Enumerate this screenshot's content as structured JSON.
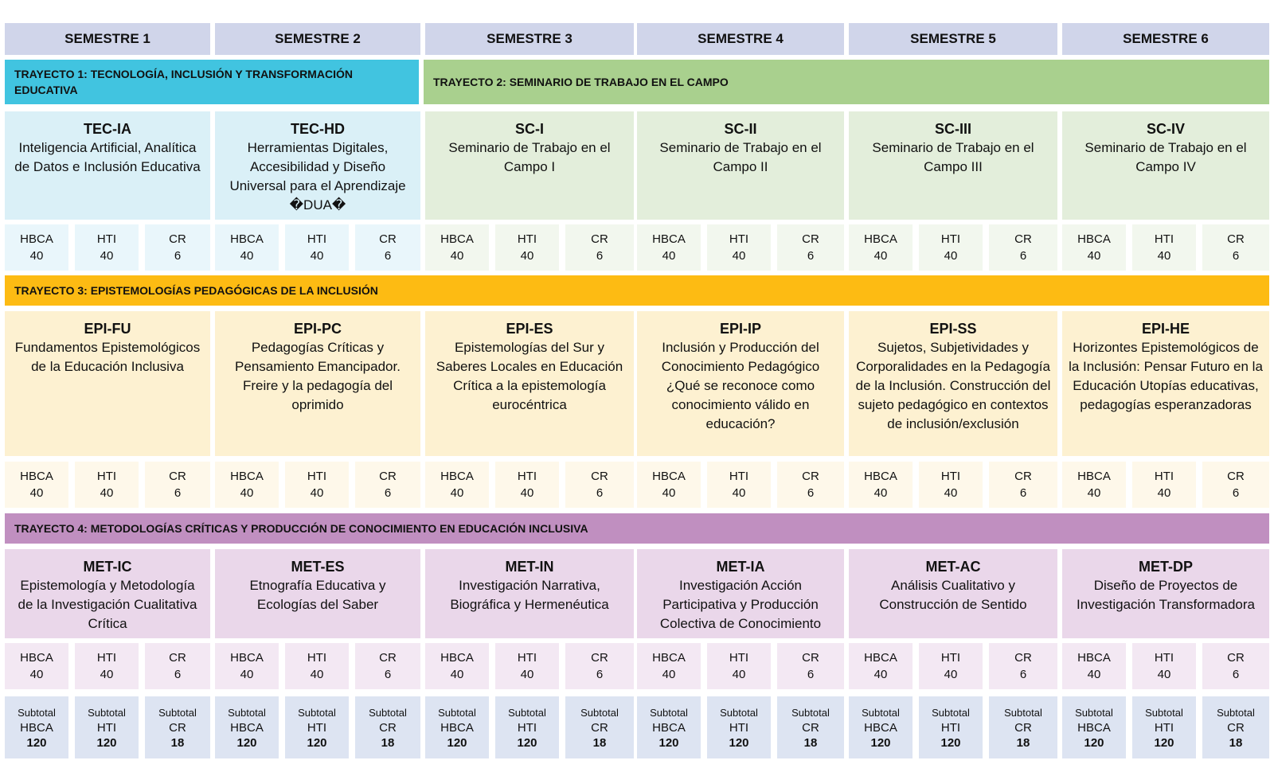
{
  "semesters": [
    "SEMESTRE 1",
    "SEMESTRE 2",
    "SEMESTRE 3",
    "SEMESTRE 4",
    "SEMESTRE 5",
    "SEMESTRE 6"
  ],
  "tracks": [
    {
      "label": "TRAYECTO 1: TECNOLOGÍA, INCLUSIÓN Y TRANSFORMACIÓN EDUCATIVA",
      "color": "#41c4e0"
    },
    {
      "label": "TRAYECTO 2: SEMINARIO DE TRABAJO EN EL CAMPO",
      "color": "#a9d08e"
    },
    {
      "label": "TRAYECTO 3: EPISTEMOLOGÍAS PEDAGÓGICAS DE LA INCLUSIÓN",
      "color": "#fdbb13"
    },
    {
      "label": "TRAYECTO 4:  METODOLOGÍAS CRÍTICAS Y PRODUCCIÓN DE CONOCIMIENTO EN EDUCACIÓN INCLUSIVA",
      "color": "#c08fc0"
    }
  ],
  "colors": {
    "blue_course": "#daf0f7",
    "blue_credit": "#e9f6fb",
    "green_course": "#e3eedb",
    "green_credit": "#f2f7ee",
    "yellow_course": "#fdf1d1",
    "yellow_credit": "#fef8ea",
    "purple_course": "#ead7ea",
    "purple_credit": "#f3e8f3",
    "subtotal": "#dde4f2",
    "semester_header": "#d0d5ea"
  },
  "rows": {
    "row1": [
      {
        "code": "TEC-IA",
        "title": "Inteligencia Artificial, Analítica de Datos e Inclusión Educativa",
        "hbca": "40",
        "hti": "40",
        "cr": "6"
      },
      {
        "code": "TEC-HD",
        "title": "Herramientas Digitales, Accesibilidad y Diseño Universal para el Aprendizaje �DUA�",
        "hbca": "40",
        "hti": "40",
        "cr": "6"
      },
      {
        "code": "SC-I",
        "title": "Seminario de Trabajo en el Campo I",
        "hbca": "40",
        "hti": "40",
        "cr": "6"
      },
      {
        "code": "SC-II",
        "title": "Seminario de Trabajo en el Campo II",
        "hbca": "40",
        "hti": "40",
        "cr": "6"
      },
      {
        "code": "SC-III",
        "title": "Seminario de Trabajo en el Campo III",
        "hbca": "40",
        "hti": "40",
        "cr": "6"
      },
      {
        "code": "SC-IV",
        "title": "Seminario de Trabajo en el Campo IV",
        "hbca": "40",
        "hti": "40",
        "cr": "6"
      }
    ],
    "row2": [
      {
        "code": "EPI-FU",
        "title": "Fundamentos Epistemológicos de la Educación Inclusiva",
        "hbca": "40",
        "hti": "40",
        "cr": "6"
      },
      {
        "code": "EPI-PC",
        "title": "Pedagogías Críticas y Pensamiento Emancipador. Freire y la pedagogía del oprimido",
        "hbca": "40",
        "hti": "40",
        "cr": "6"
      },
      {
        "code": "EPI-ES",
        "title": "Epistemologías del Sur y Saberes Locales en Educación Crítica a la epistemología eurocéntrica",
        "hbca": "40",
        "hti": "40",
        "cr": "6"
      },
      {
        "code": "EPI-IP",
        "title": "Inclusión y Producción del Conocimiento Pedagógico ¿Qué se reconoce como conocimiento válido en educación?",
        "hbca": "40",
        "hti": "40",
        "cr": "6"
      },
      {
        "code": "EPI-SS",
        "title": "Sujetos, Subjetividades y Corporalidades en la Pedagogía de la Inclusión. Construcción del sujeto pedagógico en contextos de inclusión/exclusión",
        "hbca": "40",
        "hti": "40",
        "cr": "6"
      },
      {
        "code": "EPI-HE",
        "title": "Horizontes Epistemológicos de la Inclusión: Pensar Futuro en la Educación Utopías educativas, pedagogías esperanzadoras",
        "hbca": "40",
        "hti": "40",
        "cr": "6"
      }
    ],
    "row3": [
      {
        "code": "MET-IC",
        "title": "Epistemología y Metodología de la Investigación Cualitativa Crítica",
        "hbca": "40",
        "hti": "40",
        "cr": "6"
      },
      {
        "code": "MET-ES",
        "title": "Etnografía Educativa y Ecologías del Saber",
        "hbca": "40",
        "hti": "40",
        "cr": "6"
      },
      {
        "code": "MET-IN",
        "title": "Investigación Narrativa, Biográfica y Hermenéutica",
        "hbca": "40",
        "hti": "40",
        "cr": "6"
      },
      {
        "code": "MET-IA",
        "title": "Investigación Acción Participativa y Producción Colectiva de Conocimiento",
        "hbca": "40",
        "hti": "40",
        "cr": "6"
      },
      {
        "code": "MET-AC",
        "title": "Análisis Cualitativo y Construcción de Sentido",
        "hbca": "40",
        "hti": "40",
        "cr": "6"
      },
      {
        "code": "MET-DP",
        "title": "Diseño de Proyectos de Investigación Transformadora",
        "hbca": "40",
        "hti": "40",
        "cr": "6"
      }
    ]
  },
  "labels": {
    "hbca": "HBCA",
    "hti": "HTI",
    "cr": "CR",
    "subtotal": "Subtotal"
  },
  "subtotals": {
    "hbca": "120",
    "hti": "120",
    "cr": "18"
  }
}
